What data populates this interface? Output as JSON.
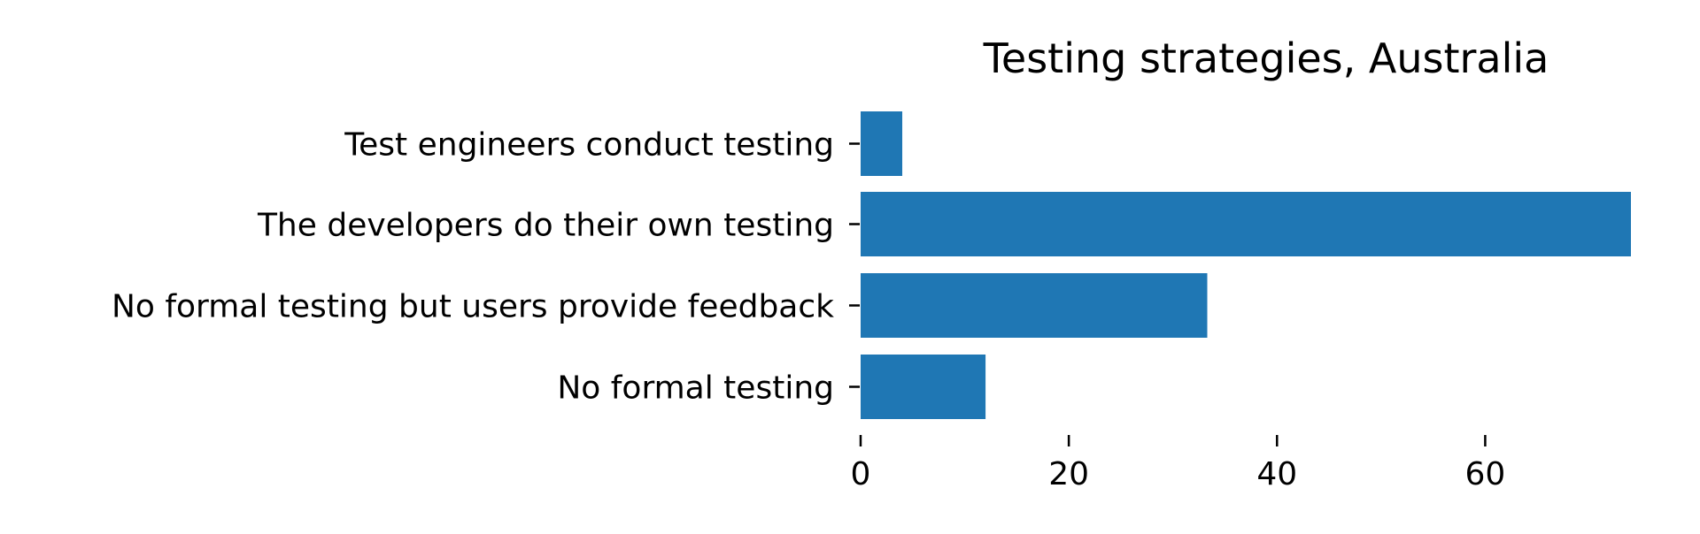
{
  "chart_data": {
    "type": "bar",
    "orientation": "horizontal",
    "title": "Testing strategies, Australia",
    "xlabel": "",
    "ylabel": "",
    "categories": [
      "Test engineers conduct testing",
      "The developers do their own testing",
      "No formal testing but users provide feedback",
      "No formal testing"
    ],
    "values": [
      4,
      74,
      33.3,
      12
    ],
    "xlim": [
      0,
      74
    ],
    "xticks": [
      0,
      20,
      40,
      60
    ],
    "xtick_labels": [
      "0",
      "20",
      "40",
      "60"
    ],
    "grid": false,
    "legend": "none",
    "colors": {
      "bar": "#1f77b4",
      "text": "#000000",
      "axis": "#000000",
      "background": "#ffffff"
    }
  }
}
